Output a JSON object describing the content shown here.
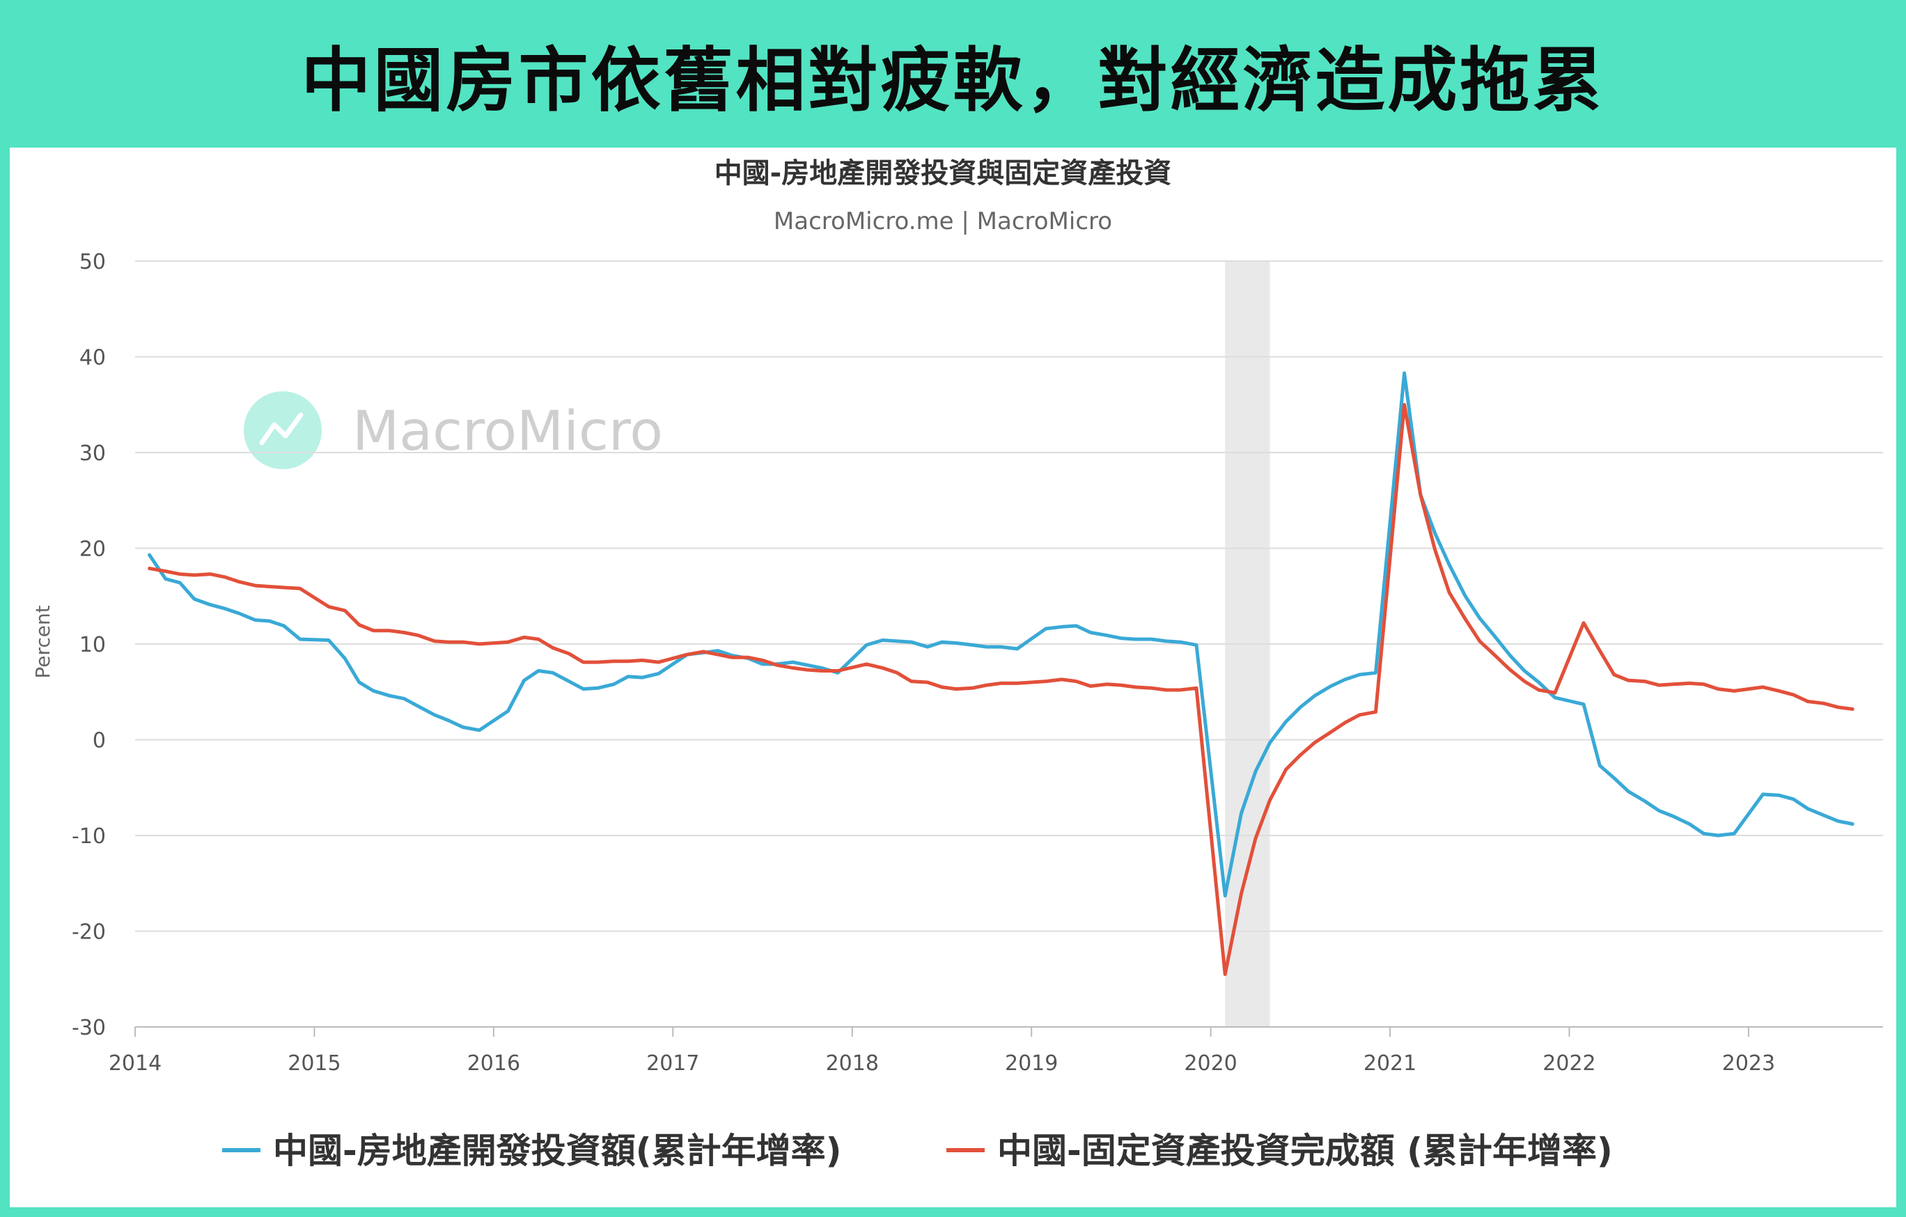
{
  "headline": "中國房市依舊相對疲軟，對經濟造成拖累",
  "colors": {
    "background": "#52e3c2",
    "series_blue": "#3aa9d6",
    "series_red": "#e2503a",
    "shade": "#e9e9e9",
    "grid": "#dddddd",
    "watermark": "#7fe6cf"
  },
  "watermark": {
    "text": "MacroMicro",
    "icon": "macromicro-logo-icon"
  },
  "chart_data": {
    "type": "line",
    "title": "中國-房地產開發投資與固定資產投資",
    "subtitle": "MacroMicro.me | MacroMicro",
    "ylabel": "Percent",
    "ylim": [
      -30,
      50
    ],
    "yticks": [
      50,
      40,
      30,
      20,
      10,
      0,
      -10,
      -20,
      -30
    ],
    "xlim": [
      2014.0,
      2023.75
    ],
    "xticks": [
      2014,
      2015,
      2016,
      2017,
      2018,
      2019,
      2020,
      2021,
      2022,
      2023
    ],
    "shaded_region": [
      2020.08,
      2020.33
    ],
    "legend_position": "bottom",
    "grid": true,
    "series": [
      {
        "name": "中國-房地產開發投資額(累計年增率)",
        "color": "#3aa9d6",
        "points": [
          [
            2014.08,
            19.3
          ],
          [
            2014.17,
            16.8
          ],
          [
            2014.25,
            16.4
          ],
          [
            2014.33,
            14.7
          ],
          [
            2014.42,
            14.1
          ],
          [
            2014.5,
            13.7
          ],
          [
            2014.58,
            13.2
          ],
          [
            2014.67,
            12.5
          ],
          [
            2014.75,
            12.4
          ],
          [
            2014.83,
            11.9
          ],
          [
            2014.92,
            10.5
          ],
          [
            2015.08,
            10.4
          ],
          [
            2015.17,
            8.5
          ],
          [
            2015.25,
            6.0
          ],
          [
            2015.33,
            5.1
          ],
          [
            2015.42,
            4.6
          ],
          [
            2015.5,
            4.3
          ],
          [
            2015.58,
            3.5
          ],
          [
            2015.67,
            2.6
          ],
          [
            2015.75,
            2.0
          ],
          [
            2015.83,
            1.3
          ],
          [
            2015.92,
            1.0
          ],
          [
            2016.08,
            3.0
          ],
          [
            2016.17,
            6.2
          ],
          [
            2016.25,
            7.2
          ],
          [
            2016.33,
            7.0
          ],
          [
            2016.42,
            6.1
          ],
          [
            2016.5,
            5.3
          ],
          [
            2016.58,
            5.4
          ],
          [
            2016.67,
            5.8
          ],
          [
            2016.75,
            6.6
          ],
          [
            2016.83,
            6.5
          ],
          [
            2016.92,
            6.9
          ],
          [
            2017.08,
            8.9
          ],
          [
            2017.17,
            9.1
          ],
          [
            2017.25,
            9.3
          ],
          [
            2017.33,
            8.8
          ],
          [
            2017.42,
            8.5
          ],
          [
            2017.5,
            7.9
          ],
          [
            2017.58,
            7.9
          ],
          [
            2017.67,
            8.1
          ],
          [
            2017.75,
            7.8
          ],
          [
            2017.83,
            7.5
          ],
          [
            2017.92,
            7.0
          ],
          [
            2018.08,
            9.9
          ],
          [
            2018.17,
            10.4
          ],
          [
            2018.25,
            10.3
          ],
          [
            2018.33,
            10.2
          ],
          [
            2018.42,
            9.7
          ],
          [
            2018.5,
            10.2
          ],
          [
            2018.58,
            10.1
          ],
          [
            2018.67,
            9.9
          ],
          [
            2018.75,
            9.7
          ],
          [
            2018.83,
            9.7
          ],
          [
            2018.92,
            9.5
          ],
          [
            2019.08,
            11.6
          ],
          [
            2019.17,
            11.8
          ],
          [
            2019.25,
            11.9
          ],
          [
            2019.33,
            11.2
          ],
          [
            2019.42,
            10.9
          ],
          [
            2019.5,
            10.6
          ],
          [
            2019.58,
            10.5
          ],
          [
            2019.67,
            10.5
          ],
          [
            2019.75,
            10.3
          ],
          [
            2019.83,
            10.2
          ],
          [
            2019.92,
            9.9
          ],
          [
            2020.08,
            -16.3
          ],
          [
            2020.17,
            -7.7
          ],
          [
            2020.25,
            -3.3
          ],
          [
            2020.33,
            -0.3
          ],
          [
            2020.42,
            1.9
          ],
          [
            2020.5,
            3.4
          ],
          [
            2020.58,
            4.6
          ],
          [
            2020.67,
            5.6
          ],
          [
            2020.75,
            6.3
          ],
          [
            2020.83,
            6.8
          ],
          [
            2020.92,
            7.0
          ],
          [
            2021.08,
            38.3
          ],
          [
            2021.17,
            25.6
          ],
          [
            2021.25,
            21.6
          ],
          [
            2021.33,
            18.3
          ],
          [
            2021.42,
            15.0
          ],
          [
            2021.5,
            12.7
          ],
          [
            2021.58,
            10.9
          ],
          [
            2021.67,
            8.8
          ],
          [
            2021.75,
            7.2
          ],
          [
            2021.83,
            6.0
          ],
          [
            2021.92,
            4.4
          ],
          [
            2022.08,
            3.7
          ],
          [
            2022.17,
            -2.7
          ],
          [
            2022.25,
            -4.0
          ],
          [
            2022.33,
            -5.4
          ],
          [
            2022.42,
            -6.4
          ],
          [
            2022.5,
            -7.4
          ],
          [
            2022.58,
            -8.0
          ],
          [
            2022.67,
            -8.8
          ],
          [
            2022.75,
            -9.8
          ],
          [
            2022.83,
            -10.0
          ],
          [
            2022.92,
            -9.8
          ],
          [
            2023.08,
            -5.7
          ],
          [
            2023.17,
            -5.8
          ],
          [
            2023.25,
            -6.2
          ],
          [
            2023.33,
            -7.2
          ],
          [
            2023.42,
            -7.9
          ],
          [
            2023.5,
            -8.5
          ],
          [
            2023.58,
            -8.8
          ]
        ]
      },
      {
        "name": "中國-固定資產投資完成額 (累計年增率)",
        "color": "#e2503a",
        "points": [
          [
            2014.08,
            17.9
          ],
          [
            2014.17,
            17.6
          ],
          [
            2014.25,
            17.3
          ],
          [
            2014.33,
            17.2
          ],
          [
            2014.42,
            17.3
          ],
          [
            2014.5,
            17.0
          ],
          [
            2014.58,
            16.5
          ],
          [
            2014.67,
            16.1
          ],
          [
            2014.75,
            16.0
          ],
          [
            2014.83,
            15.9
          ],
          [
            2014.92,
            15.8
          ],
          [
            2015.08,
            13.9
          ],
          [
            2015.17,
            13.5
          ],
          [
            2015.25,
            12.0
          ],
          [
            2015.33,
            11.4
          ],
          [
            2015.42,
            11.4
          ],
          [
            2015.5,
            11.2
          ],
          [
            2015.58,
            10.9
          ],
          [
            2015.67,
            10.3
          ],
          [
            2015.75,
            10.2
          ],
          [
            2015.83,
            10.2
          ],
          [
            2015.92,
            10.0
          ],
          [
            2016.08,
            10.2
          ],
          [
            2016.17,
            10.7
          ],
          [
            2016.25,
            10.5
          ],
          [
            2016.33,
            9.6
          ],
          [
            2016.42,
            9.0
          ],
          [
            2016.5,
            8.1
          ],
          [
            2016.58,
            8.1
          ],
          [
            2016.67,
            8.2
          ],
          [
            2016.75,
            8.2
          ],
          [
            2016.83,
            8.3
          ],
          [
            2016.92,
            8.1
          ],
          [
            2017.08,
            8.9
          ],
          [
            2017.17,
            9.2
          ],
          [
            2017.25,
            8.9
          ],
          [
            2017.33,
            8.6
          ],
          [
            2017.42,
            8.6
          ],
          [
            2017.5,
            8.3
          ],
          [
            2017.58,
            7.8
          ],
          [
            2017.67,
            7.5
          ],
          [
            2017.75,
            7.3
          ],
          [
            2017.83,
            7.2
          ],
          [
            2017.92,
            7.2
          ],
          [
            2018.08,
            7.9
          ],
          [
            2018.17,
            7.5
          ],
          [
            2018.25,
            7.0
          ],
          [
            2018.33,
            6.1
          ],
          [
            2018.42,
            6.0
          ],
          [
            2018.5,
            5.5
          ],
          [
            2018.58,
            5.3
          ],
          [
            2018.67,
            5.4
          ],
          [
            2018.75,
            5.7
          ],
          [
            2018.83,
            5.9
          ],
          [
            2018.92,
            5.9
          ],
          [
            2019.08,
            6.1
          ],
          [
            2019.17,
            6.3
          ],
          [
            2019.25,
            6.1
          ],
          [
            2019.33,
            5.6
          ],
          [
            2019.42,
            5.8
          ],
          [
            2019.5,
            5.7
          ],
          [
            2019.58,
            5.5
          ],
          [
            2019.67,
            5.4
          ],
          [
            2019.75,
            5.2
          ],
          [
            2019.83,
            5.2
          ],
          [
            2019.92,
            5.4
          ],
          [
            2020.08,
            -24.5
          ],
          [
            2020.17,
            -16.1
          ],
          [
            2020.25,
            -10.3
          ],
          [
            2020.33,
            -6.3
          ],
          [
            2020.42,
            -3.1
          ],
          [
            2020.5,
            -1.6
          ],
          [
            2020.58,
            -0.3
          ],
          [
            2020.67,
            0.8
          ],
          [
            2020.75,
            1.8
          ],
          [
            2020.83,
            2.6
          ],
          [
            2020.92,
            2.9
          ],
          [
            2021.08,
            35.0
          ],
          [
            2021.17,
            25.6
          ],
          [
            2021.25,
            19.9
          ],
          [
            2021.33,
            15.4
          ],
          [
            2021.42,
            12.6
          ],
          [
            2021.5,
            10.3
          ],
          [
            2021.58,
            8.9
          ],
          [
            2021.67,
            7.3
          ],
          [
            2021.75,
            6.1
          ],
          [
            2021.83,
            5.2
          ],
          [
            2021.92,
            4.9
          ],
          [
            2022.08,
            12.2
          ],
          [
            2022.17,
            9.3
          ],
          [
            2022.25,
            6.8
          ],
          [
            2022.33,
            6.2
          ],
          [
            2022.42,
            6.1
          ],
          [
            2022.5,
            5.7
          ],
          [
            2022.58,
            5.8
          ],
          [
            2022.67,
            5.9
          ],
          [
            2022.75,
            5.8
          ],
          [
            2022.83,
            5.3
          ],
          [
            2022.92,
            5.1
          ],
          [
            2023.08,
            5.5
          ],
          [
            2023.17,
            5.1
          ],
          [
            2023.25,
            4.7
          ],
          [
            2023.33,
            4.0
          ],
          [
            2023.42,
            3.8
          ],
          [
            2023.5,
            3.4
          ],
          [
            2023.58,
            3.2
          ]
        ]
      }
    ]
  }
}
